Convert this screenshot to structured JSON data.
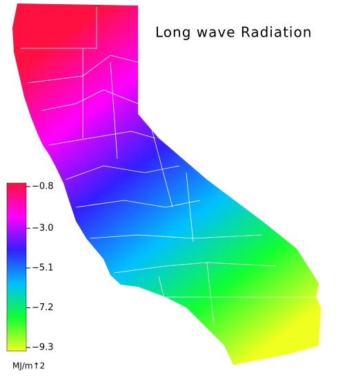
{
  "title": "Long wave Radiation",
  "colorbar": {
    "lim": [
      -0.8,
      -9.3
    ],
    "ticks": [
      {
        "value": -0.8,
        "label": "−0.8"
      },
      {
        "value": -3.0,
        "label": "−3.0"
      },
      {
        "value": -5.1,
        "label": "−5.1"
      },
      {
        "value": -7.2,
        "label": "−7.2"
      },
      {
        "value": -9.3,
        "label": "−9.3"
      }
    ],
    "colors": [
      "#ff1040",
      "#ff00ff",
      "#3020ff",
      "#00c0ff",
      "#10ff30",
      "#f0ff20"
    ],
    "unit": "MJ/m↑2"
  }
}
